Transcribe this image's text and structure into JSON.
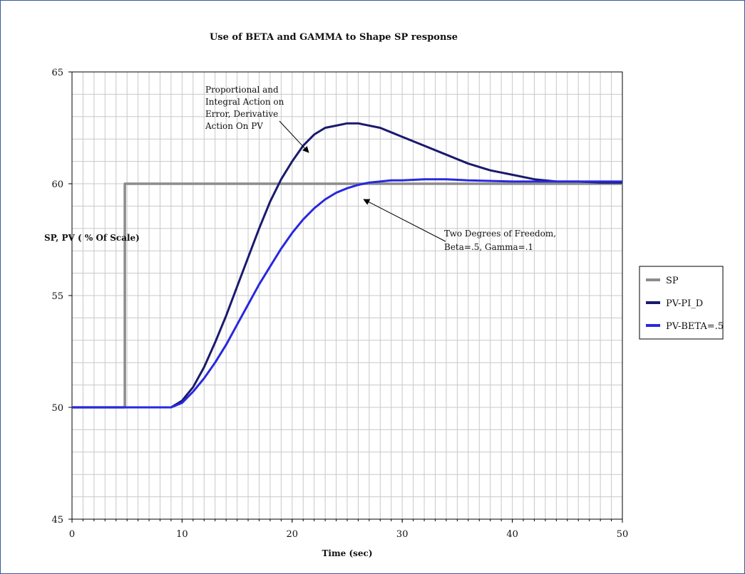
{
  "chart_data": {
    "type": "line",
    "title": "Use of BETA and GAMMA to Shape SP response",
    "xlabel": "Time (sec)",
    "ylabel": "SP, PV ( % Of Scale)",
    "xlim": [
      0,
      50
    ],
    "ylim": [
      45,
      65
    ],
    "x_ticks": [
      "0",
      "10",
      "20",
      "30",
      "40",
      "50"
    ],
    "y_ticks": [
      "45",
      "50",
      "55",
      "60",
      "65"
    ],
    "grid": true,
    "legend_position": "right",
    "series": [
      {
        "name": "SP",
        "color": "#8c8c8c",
        "x": [
          0,
          4.8,
          4.8,
          5,
          50
        ],
        "y": [
          50,
          50,
          60,
          60,
          60
        ]
      },
      {
        "name": "PV-PI_D",
        "color": "#1a1a6e",
        "x": [
          0,
          9,
          10,
          11,
          12,
          13,
          14,
          15,
          16,
          17,
          18,
          19,
          20,
          21,
          22,
          23,
          24,
          25,
          26,
          27,
          28,
          29,
          30,
          32,
          34,
          36,
          38,
          40,
          42,
          44,
          46,
          48,
          50
        ],
        "y": [
          50,
          50,
          50.3,
          50.9,
          51.8,
          52.9,
          54.1,
          55.4,
          56.7,
          58.0,
          59.2,
          60.2,
          61.0,
          61.7,
          62.2,
          62.5,
          62.6,
          62.7,
          62.7,
          62.6,
          62.5,
          62.3,
          62.1,
          61.7,
          61.3,
          60.9,
          60.6,
          60.4,
          60.2,
          60.1,
          60.1,
          60.05,
          60.05
        ]
      },
      {
        "name": "PV-BETA=.5",
        "color": "#2828e0",
        "x": [
          0,
          9,
          10,
          11,
          12,
          13,
          14,
          15,
          16,
          17,
          18,
          19,
          20,
          21,
          22,
          23,
          24,
          25,
          26,
          27,
          28,
          29,
          30,
          32,
          34,
          36,
          40,
          44,
          50
        ],
        "y": [
          50,
          50,
          50.2,
          50.7,
          51.3,
          52.0,
          52.8,
          53.7,
          54.6,
          55.5,
          56.3,
          57.1,
          57.8,
          58.4,
          58.9,
          59.3,
          59.6,
          59.8,
          59.95,
          60.05,
          60.1,
          60.15,
          60.15,
          60.2,
          60.2,
          60.15,
          60.1,
          60.1,
          60.1
        ]
      }
    ],
    "annotations": [
      {
        "lines": [
          "Proportional and",
          "Integral Action on",
          "Error, Derivative",
          "Action On PV"
        ],
        "arrow_to": [
          21.5,
          61.4
        ]
      },
      {
        "lines": [
          "Two Degrees of Freedom,",
          "Beta=.5, Gamma=.1"
        ],
        "arrow_to": [
          26.5,
          59.3
        ]
      }
    ]
  }
}
